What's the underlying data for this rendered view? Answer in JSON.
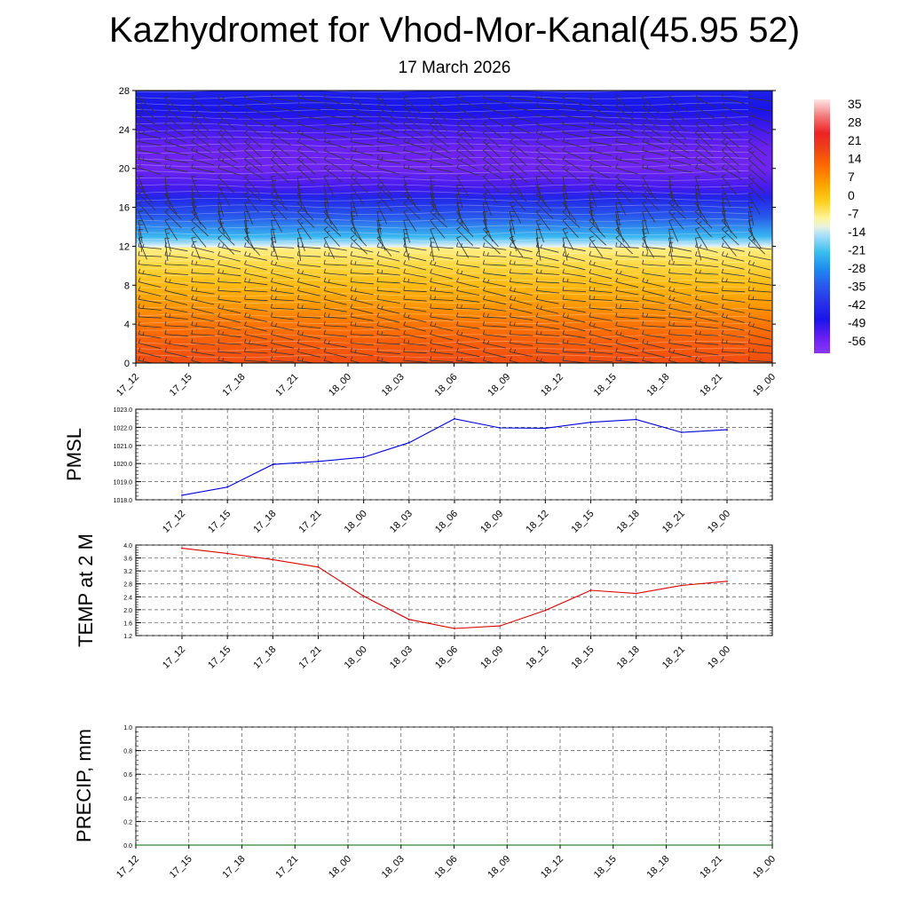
{
  "header": {
    "title": "Kazhydromet for Vhod-Mor-Kanal(45.95 52)",
    "date": "17 March 2026"
  },
  "colors": {
    "pmsl_line": "#0000dd",
    "temp_line": "#dd0000",
    "precip_line": "#006400",
    "wind_barb": "#333333"
  },
  "chart_data": [
    {
      "id": "vertical-profile",
      "type": "heatmap",
      "title": "",
      "xlabel": "",
      "ylabel": "",
      "x_categories": [
        "17_12",
        "17_15",
        "17_18",
        "17_21",
        "18_00",
        "18_03",
        "18_06",
        "18_09",
        "18_12",
        "18_15",
        "18_18",
        "18_21",
        "19_00"
      ],
      "y_ticks": [
        0,
        4,
        8,
        12,
        16,
        20,
        24,
        28
      ],
      "ylim": [
        0,
        28
      ],
      "temperature_profile": {
        "levels": [
          0,
          2,
          4,
          6,
          8,
          10,
          11.8,
          12,
          13,
          15,
          17,
          18,
          20,
          22,
          24,
          26,
          28
        ],
        "values": [
          20,
          17,
          13,
          8,
          3,
          -2,
          -6,
          -12,
          -22,
          -35,
          -45,
          -53,
          -58,
          -57,
          -53,
          -49,
          -46
        ]
      },
      "colorbar": {
        "labels": [
          "35",
          "28",
          "21",
          "14",
          "7",
          "0",
          "-7",
          "-14",
          "-21",
          "-28",
          "-35",
          "-42",
          "-49",
          "-56"
        ],
        "range": [
          -63,
          42
        ]
      },
      "wind_barbs": "shown at every time step and height level"
    },
    {
      "id": "pmsl",
      "type": "line",
      "ylabel": "PMSL",
      "categories": [
        "17_12",
        "17_15",
        "17_18",
        "17_21",
        "18_00",
        "18_03",
        "18_06",
        "18_09",
        "18_12",
        "18_15",
        "18_18",
        "18_21",
        "19_00"
      ],
      "series": [
        {
          "name": "PMSL",
          "values": [
            1018.25,
            1018.7,
            1019.95,
            1020.12,
            1020.35,
            1021.15,
            1022.47,
            1021.97,
            1021.95,
            1022.28,
            1022.43,
            1021.72,
            1021.87
          ]
        }
      ],
      "ylim": [
        1018,
        1023
      ],
      "y_ticks": [
        "1018.0",
        "1019.0",
        "1020.0",
        "1021.0",
        "1022.0",
        "1023.0"
      ],
      "grid": true
    },
    {
      "id": "temp2m",
      "type": "line",
      "ylabel": "TEMP at 2 M",
      "categories": [
        "17_12",
        "17_15",
        "17_18",
        "17_21",
        "18_00",
        "18_03",
        "18_06",
        "18_09",
        "18_12",
        "18_15",
        "18_18",
        "18_21",
        "19_00"
      ],
      "series": [
        {
          "name": "TEMP at 2 M",
          "values": [
            3.9,
            3.74,
            3.55,
            3.32,
            2.42,
            1.7,
            1.42,
            1.5,
            1.98,
            2.6,
            2.5,
            2.75,
            2.88
          ]
        }
      ],
      "ylim": [
        1.2,
        4.0
      ],
      "y_ticks": [
        "1.2",
        "1.6",
        "2.0",
        "2.4",
        "2.8",
        "3.2",
        "3.6",
        "4.0"
      ],
      "grid": true
    },
    {
      "id": "precip",
      "type": "line",
      "ylabel": "PRECIP, mm",
      "categories": [
        "17_12",
        "17_15",
        "17_18",
        "17_21",
        "18_00",
        "18_03",
        "18_06",
        "18_09",
        "18_12",
        "18_15",
        "18_18",
        "18_21",
        "19_00"
      ],
      "series": [
        {
          "name": "PRECIP",
          "values": [
            0,
            0,
            0,
            0,
            0,
            0,
            0,
            0,
            0,
            0,
            0,
            0,
            0
          ]
        }
      ],
      "ylim": [
        0,
        1
      ],
      "y_ticks": [
        "0.0",
        "0.2",
        "0.4",
        "0.6",
        "0.8",
        "1.0"
      ],
      "grid": true
    }
  ]
}
